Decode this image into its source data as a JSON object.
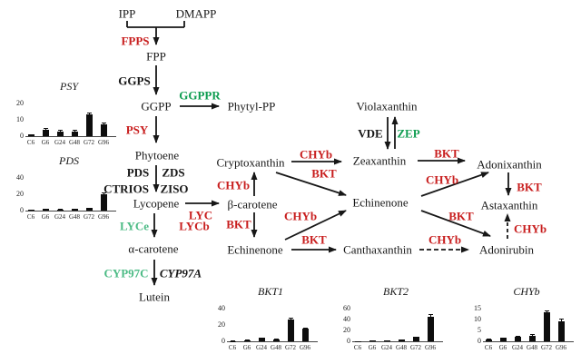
{
  "figure": {
    "colors": {
      "enzyme_red": "#c81e1e",
      "enzyme_green": "#0f9d51",
      "enzyme_green_light": "#4cbb85",
      "text_black": "#171717",
      "bar_fill": "#0d0d0d"
    },
    "nodes": {
      "ipp": "IPP",
      "dmapp": "DMAPP",
      "fpp": "FPP",
      "ggpp": "GGPP",
      "phytylpp": "Phytyl-PP",
      "phytoene": "Phytoene",
      "lycopene": "Lycopene",
      "beta_carotene": "β-carotene",
      "alpha_carotene": "α-carotene",
      "lutein": "Lutein",
      "cryptoxanthin": "Cryptoxanthin",
      "zeaxanthin": "Zeaxanthin",
      "violaxanthin": "Violaxanthin",
      "echinenone_mid": "Echinenone",
      "echinenone_low": "Echinenone",
      "canthaxanthin": "Canthaxanthin",
      "adonixanthin": "Adonixanthin",
      "astaxanthin": "Astaxanthin",
      "adonirubin": "Adonirubin"
    },
    "enzymes": {
      "fpps": "FPPS",
      "ggps": "GGPS",
      "ggppr": "GGPPR",
      "psy": "PSY",
      "pds": "PDS",
      "zds": "ZDS",
      "ctrios": "CTRIOS",
      "ziso": "ZISO",
      "lyc": "LYC",
      "lyce": "LYCe",
      "lycb": "LYCb",
      "cyp97c": "CYP97C",
      "cyp97a": "CYP97A",
      "vde": "VDE",
      "zep": "ZEP",
      "chyb": "CHYb",
      "bkt": "BKT"
    }
  },
  "chart_data": [
    {
      "id": "psy",
      "type": "bar",
      "title": "PSY",
      "categories": [
        "C6",
        "G6",
        "G24",
        "G48",
        "G72",
        "G96"
      ],
      "values": [
        1,
        4,
        3,
        3,
        13,
        7
      ],
      "errors": [
        0.3,
        1,
        0.8,
        0.8,
        1.5,
        1.2
      ],
      "yticks": [
        0,
        10,
        20
      ],
      "ylim": [
        0,
        22
      ],
      "xlabel": "",
      "ylabel": ""
    },
    {
      "id": "pds",
      "type": "bar",
      "title": "PDS",
      "categories": [
        "C6",
        "G6",
        "G24",
        "G48",
        "G72",
        "G96"
      ],
      "values": [
        1,
        2,
        1.5,
        2,
        3,
        20
      ],
      "errors": [
        0.2,
        0.4,
        0.3,
        0.4,
        0.6,
        2
      ],
      "yticks": [
        0,
        20,
        40
      ],
      "ylim": [
        0,
        44
      ],
      "xlabel": "",
      "ylabel": ""
    },
    {
      "id": "bkt1",
      "type": "bar",
      "title": "BKT1",
      "categories": [
        "C6",
        "G6",
        "G24",
        "G48",
        "G72",
        "G96"
      ],
      "values": [
        0.5,
        1.5,
        4,
        2.5,
        26,
        15
      ],
      "errors": [
        0.2,
        0.3,
        0.6,
        0.4,
        2.5,
        1.5
      ],
      "yticks": [
        0,
        20,
        40
      ],
      "ylim": [
        0,
        44
      ],
      "xlabel": "",
      "ylabel": ""
    },
    {
      "id": "bkt2",
      "type": "bar",
      "title": "BKT2",
      "categories": [
        "C6",
        "G6",
        "G24",
        "G48",
        "G72",
        "G96"
      ],
      "values": [
        0.5,
        1,
        2,
        3.5,
        8,
        45
      ],
      "errors": [
        0.2,
        0.2,
        0.3,
        0.5,
        1,
        4
      ],
      "yticks": [
        0,
        20,
        40,
        60
      ],
      "ylim": [
        0,
        66
      ],
      "xlabel": "",
      "ylabel": ""
    },
    {
      "id": "chyb",
      "type": "bar",
      "title": "CHYb",
      "categories": [
        "C6",
        "G6",
        "G24",
        "G48",
        "G72",
        "G96"
      ],
      "values": [
        1,
        1.5,
        2,
        2.5,
        13,
        9
      ],
      "errors": [
        0.3,
        0.3,
        0.4,
        0.6,
        1.2,
        1.5
      ],
      "yticks": [
        0,
        5,
        10,
        15
      ],
      "ylim": [
        0,
        16.5
      ],
      "xlabel": "",
      "ylabel": ""
    }
  ]
}
